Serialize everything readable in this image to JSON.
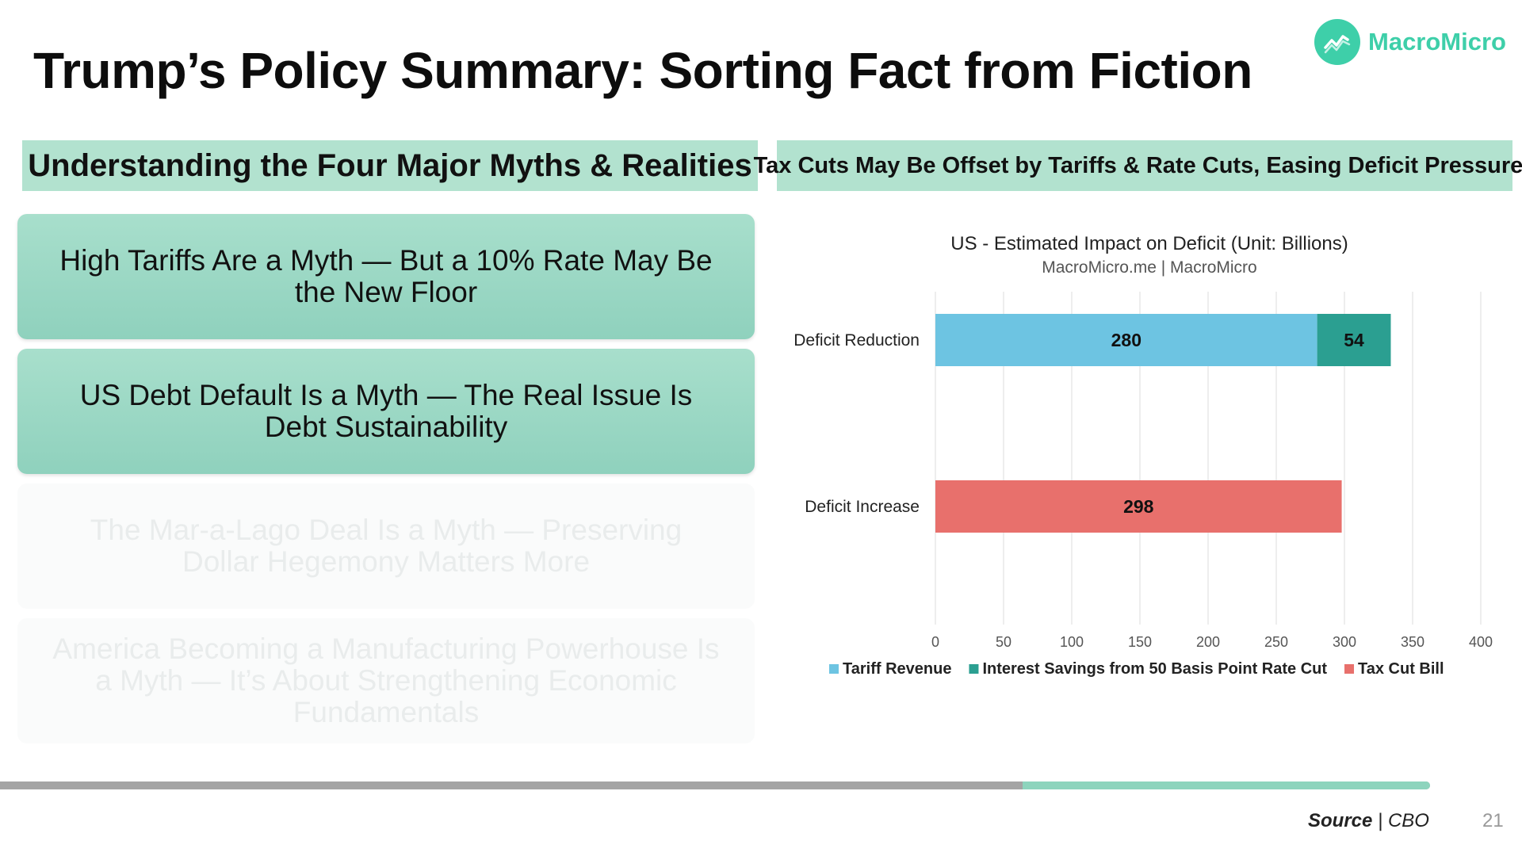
{
  "slide": {
    "title": "Trump’s Policy Summary: Sorting Fact from Fiction",
    "logo_text": "MacroMicro",
    "left_header": "Understanding the Four Major Myths & Realities",
    "right_header": "Tax Cuts May Be Offset by Tariffs & Rate Cuts, Easing Deficit Pressures",
    "progress": 0.58,
    "source_label": "Source",
    "source_value": "CBO",
    "page_number": "21"
  },
  "myths": [
    {
      "text": "High Tariffs Are a Myth — But a 10% Rate May Be the New Floor"
    },
    {
      "text": "US Debt Default Is a Myth — The Real Issue Is Debt Sustainability"
    },
    {
      "text": "The Mar-a-Lago Deal Is a Myth — Preserving Dollar Hegemony Matters More"
    },
    {
      "text": "America Becoming a Manufacturing Powerhouse Is a Myth — It’s About Strengthening Economic Fundamentals"
    }
  ],
  "colors": {
    "accent": "#3ecfa9",
    "header_bg": "#b2e2cf",
    "tariff": "#6dc4e2",
    "interest": "#2b9f91",
    "taxcut": "#e8706c"
  },
  "chart_data": {
    "type": "bar",
    "orientation": "horizontal",
    "stacked": true,
    "title": "US - Estimated Impact on Deficit (Unit: Billions)",
    "subtitle": "MacroMicro.me | MacroMicro",
    "categories": [
      "Deficit Reduction",
      "Deficit Increase"
    ],
    "series": [
      {
        "name": "Tariff Revenue",
        "color": "#6dc4e2",
        "values": [
          280,
          null
        ]
      },
      {
        "name": "Interest Savings from 50 Basis Point Rate Cut",
        "color": "#2b9f91",
        "values": [
          54,
          null
        ]
      },
      {
        "name": "Tax Cut Bill",
        "color": "#e8706c",
        "values": [
          null,
          298
        ]
      }
    ],
    "xlim": [
      0,
      400
    ],
    "xticks": [
      0,
      50,
      100,
      150,
      200,
      250,
      300,
      350,
      400
    ],
    "grid": true,
    "legend": "bottom"
  }
}
